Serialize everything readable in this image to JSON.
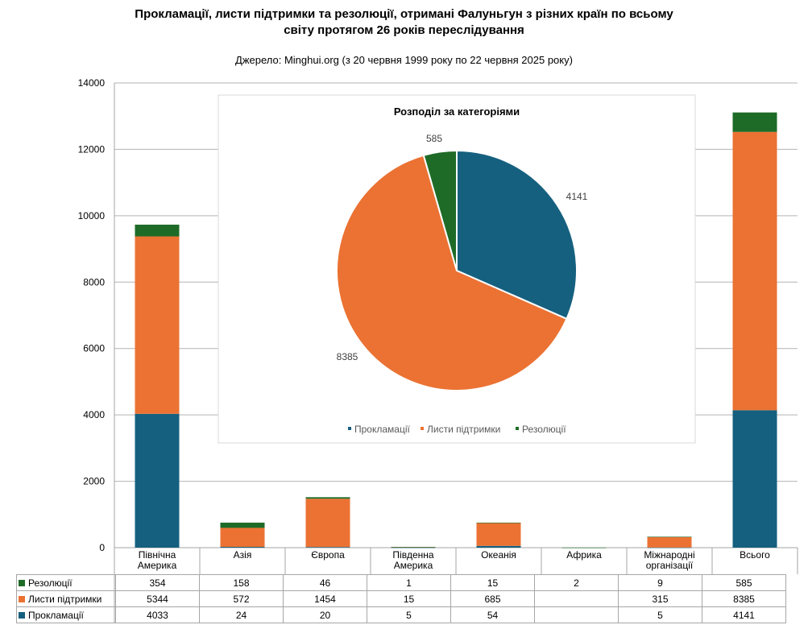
{
  "chart_data": [
    {
      "type": "bar",
      "stacked": true,
      "title": "Прокламації, листи підтримки та резолюції, отримані Фалуньгун з різних країн по всьому світу протягом 26 років переслідування",
      "title_lines": [
        "Прокламації, листи підтримки та резолюції, отримані Фалуньгун з різних країн по всьому",
        "світу протягом 26 років переслідування"
      ],
      "subtitle": "Джерело: Minghui.org (з 20 червня 1999 року по 22 червня 2025 року)",
      "categories": [
        [
          "Північна",
          "Америка"
        ],
        [
          "Азія"
        ],
        [
          "Європа"
        ],
        [
          "Південна",
          "Америка"
        ],
        [
          "Океанія"
        ],
        [
          "Африка"
        ],
        [
          "Міжнародні",
          "організації"
        ],
        [
          "Всього"
        ]
      ],
      "series": [
        {
          "name": "Резолюції",
          "color": "#1e6b27",
          "values": [
            354,
            158,
            46,
            1,
            15,
            2,
            9,
            585
          ],
          "labels": [
            "354",
            "158",
            "46",
            "1",
            "15",
            "2",
            "9",
            "585"
          ]
        },
        {
          "name": "Листи підтримки",
          "color": "#eb7233",
          "values": [
            5344,
            572,
            1454,
            15,
            685,
            0,
            315,
            8385
          ],
          "labels": [
            "5344",
            "572",
            "1454",
            "15",
            "685",
            "",
            "315",
            "8385"
          ]
        },
        {
          "name": "Прокламації",
          "color": "#16607f",
          "values": [
            4033,
            24,
            20,
            5,
            54,
            0,
            5,
            4141
          ],
          "labels": [
            "4033",
            "24",
            "20",
            "5",
            "54",
            "",
            "5",
            "4141"
          ]
        }
      ],
      "ylim": [
        0,
        14000
      ],
      "yticks": [
        0,
        2000,
        4000,
        6000,
        8000,
        10000,
        12000,
        14000
      ],
      "grid": true,
      "legend": "data-table-bottom"
    },
    {
      "type": "pie",
      "title": "Розподіл за категоріями",
      "slices": [
        {
          "name": "Прокламації",
          "value": 4141,
          "label": "4141",
          "color": "#16607f"
        },
        {
          "name": "Листи підтримки",
          "value": 8385,
          "label": "8385",
          "color": "#eb7233"
        },
        {
          "name": "Резолюції",
          "value": 585,
          "label": "585",
          "color": "#1e6b27"
        }
      ],
      "legend": "bottom"
    }
  ]
}
